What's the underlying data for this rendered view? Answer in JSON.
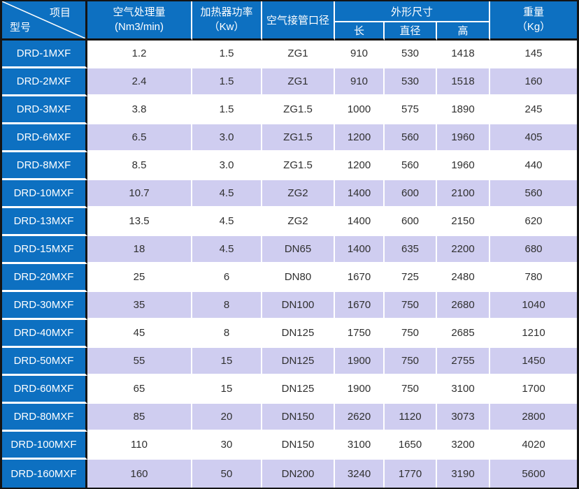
{
  "colors": {
    "header_blue": "#0d70c1",
    "row_alt_lavender": "#cfcdf0",
    "row_base_white": "#ffffff",
    "border_dark": "#141414",
    "separator_white": "#ffffff",
    "text_dark": "#303030",
    "text_light": "#ffffff"
  },
  "chart_data": {
    "type": "table",
    "corner": {
      "top_right": "项目",
      "bottom_left": "型号"
    },
    "column_groups": {
      "dims": "外形尺寸"
    },
    "columns": {
      "capacity_l1": "空气处理量",
      "capacity_l2": "(Nm3/min)",
      "heater_l1": "加热器功率",
      "heater_l2": "（Kw）",
      "pipe": "空气接管口径",
      "dim_length": "长",
      "dim_diameter": "直径",
      "dim_height": "高",
      "weight_l1": "重量",
      "weight_l2": "（Kg）"
    },
    "rows": [
      {
        "model": "DRD-1MXF",
        "capacity": "1.2",
        "heater": "1.5",
        "pipe": "ZG1",
        "length": "910",
        "diameter": "530",
        "height": "1418",
        "weight": "145"
      },
      {
        "model": "DRD-2MXF",
        "capacity": "2.4",
        "heater": "1.5",
        "pipe": "ZG1",
        "length": "910",
        "diameter": "530",
        "height": "1518",
        "weight": "160"
      },
      {
        "model": "DRD-3MXF",
        "capacity": "3.8",
        "heater": "1.5",
        "pipe": "ZG1.5",
        "length": "1000",
        "diameter": "575",
        "height": "1890",
        "weight": "245"
      },
      {
        "model": "DRD-6MXF",
        "capacity": "6.5",
        "heater": "3.0",
        "pipe": "ZG1.5",
        "length": "1200",
        "diameter": "560",
        "height": "1960",
        "weight": "405"
      },
      {
        "model": "DRD-8MXF",
        "capacity": "8.5",
        "heater": "3.0",
        "pipe": "ZG1.5",
        "length": "1200",
        "diameter": "560",
        "height": "1960",
        "weight": "440"
      },
      {
        "model": "DRD-10MXF",
        "capacity": "10.7",
        "heater": "4.5",
        "pipe": "ZG2",
        "length": "1400",
        "diameter": "600",
        "height": "2100",
        "weight": "560"
      },
      {
        "model": "DRD-13MXF",
        "capacity": "13.5",
        "heater": "4.5",
        "pipe": "ZG2",
        "length": "1400",
        "diameter": "600",
        "height": "2150",
        "weight": "620"
      },
      {
        "model": "DRD-15MXF",
        "capacity": "18",
        "heater": "4.5",
        "pipe": "DN65",
        "length": "1400",
        "diameter": "635",
        "height": "2200",
        "weight": "680"
      },
      {
        "model": "DRD-20MXF",
        "capacity": "25",
        "heater": "6",
        "pipe": "DN80",
        "length": "1670",
        "diameter": "725",
        "height": "2480",
        "weight": "780"
      },
      {
        "model": "DRD-30MXF",
        "capacity": "35",
        "heater": "8",
        "pipe": "DN100",
        "length": "1670",
        "diameter": "750",
        "height": "2680",
        "weight": "1040"
      },
      {
        "model": "DRD-40MXF",
        "capacity": "45",
        "heater": "8",
        "pipe": "DN125",
        "length": "1750",
        "diameter": "750",
        "height": "2685",
        "weight": "1210"
      },
      {
        "model": "DRD-50MXF",
        "capacity": "55",
        "heater": "15",
        "pipe": "DN125",
        "length": "1900",
        "diameter": "750",
        "height": "2755",
        "weight": "1450"
      },
      {
        "model": "DRD-60MXF",
        "capacity": "65",
        "heater": "15",
        "pipe": "DN125",
        "length": "1900",
        "diameter": "750",
        "height": "3100",
        "weight": "1700"
      },
      {
        "model": "DRD-80MXF",
        "capacity": "85",
        "heater": "20",
        "pipe": "DN150",
        "length": "2620",
        "diameter": "1120",
        "height": "3073",
        "weight": "2800"
      },
      {
        "model": "DRD-100MXF",
        "capacity": "110",
        "heater": "30",
        "pipe": "DN150",
        "length": "3100",
        "diameter": "1650",
        "height": "3200",
        "weight": "4020"
      },
      {
        "model": "DRD-160MXF",
        "capacity": "160",
        "heater": "50",
        "pipe": "DN200",
        "length": "3240",
        "diameter": "1770",
        "height": "3190",
        "weight": "5600"
      }
    ]
  }
}
